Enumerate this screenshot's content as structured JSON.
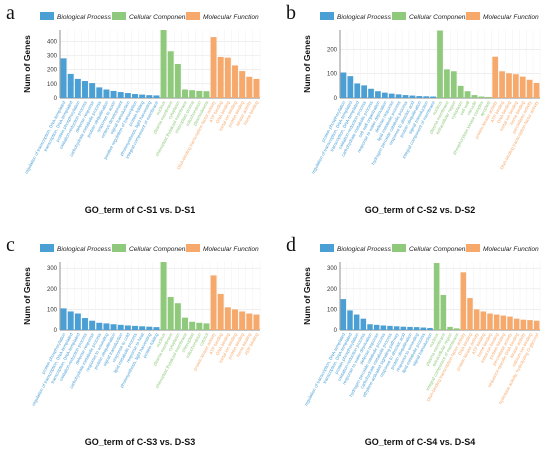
{
  "colors": {
    "bp": "#4a9fd4",
    "cc": "#8fc97c",
    "mf": "#f6a96b",
    "grid": "#e4e4e4"
  },
  "legend": {
    "items": [
      {
        "key": "bp",
        "label": "Biological Process"
      },
      {
        "key": "cc",
        "label": "Cellular Component"
      },
      {
        "key": "mf",
        "label": "Molecular Function"
      }
    ]
  },
  "chart_data": [
    {
      "type": "bar",
      "panel_letter": "a",
      "title": "GO_term of C-S1 vs. D-S1",
      "ylabel": "Num of Genes",
      "ylim": [
        0,
        480
      ],
      "yticks": [
        0,
        100,
        200,
        300,
        400
      ],
      "grid": true,
      "legend_position": "top",
      "groups": [
        {
          "key": "bp",
          "values": [
            280,
            170,
            135,
            120,
            105,
            75,
            60,
            50,
            42,
            35,
            28,
            24,
            20,
            18
          ]
        },
        {
          "key": "cc",
          "values": [
            480,
            330,
            240,
            60,
            55,
            50,
            48
          ]
        },
        {
          "key": "mf",
          "values": [
            430,
            290,
            285,
            230,
            190,
            150,
            135
          ]
        }
      ],
      "labels": {
        "bp": [
          "regulation of transcription, DNA-templated",
          "transcription, DNA-templated",
          "protein phosphorylation",
          "oxidation-reduction process",
          "defense response",
          "carbohydrate metabolic process",
          "protein ubiquitination",
          "response to auxin",
          "embryo development",
          "signal transduction",
          "positive regulation of transcription",
          "protein folding",
          "photosynthesis, light harvesting",
          "integral component of membrane"
        ],
        "cc": [
          "nucleus",
          "plasma membrane",
          "cytoplasm",
          "chloroplast thylakoid membrane",
          "chloroplast stroma",
          "mitochondrion",
          "plasmodesma"
        ],
        "mf": [
          "DNA-binding transcription factor activity",
          "ATP binding",
          "DNA binding",
          "metal ion binding",
          "protein binding",
          "kinase activity",
          "heme binding"
        ]
      }
    },
    {
      "type": "bar",
      "panel_letter": "b",
      "title": "GO_term of C-S2 vs. D-S2",
      "ylabel": "Num of Genes",
      "ylim": [
        0,
        280
      ],
      "yticks": [
        0,
        100,
        200
      ],
      "grid": true,
      "legend_position": "top",
      "groups": [
        {
          "key": "bp",
          "values": [
            105,
            90,
            60,
            52,
            38,
            28,
            22,
            18,
            15,
            12,
            10,
            8,
            7,
            6
          ]
        },
        {
          "key": "cc",
          "values": [
            278,
            118,
            110,
            50,
            28,
            12,
            6,
            4
          ]
        },
        {
          "key": "mf",
          "values": [
            170,
            110,
            102,
            98,
            88,
            75,
            62
          ]
        }
      ],
      "labels": {
        "bp": [
          "protein phosphorylation",
          "regulation of transcription, DNA-templated",
          "transcription, DNA-templated",
          "oxidation-reduction process",
          "carbohydrate metabolic process",
          "cell wall organization",
          "response to water deprivation",
          "defense response",
          "lipid metabolic process",
          "hydrogen peroxide catabolic process",
          "response to abscisic acid",
          "protein ubiquitination",
          "signal transduction",
          "integral component of membrane"
        ],
        "cc": [
          "nucleus",
          "plasma membrane",
          "extracellular region",
          "cytoplasm",
          "cell wall",
          "vacuole",
          "phosphorylase kinase complex",
          "apoplast"
        ],
        "mf": [
          "protein kinase activity",
          "ATP binding",
          "DNA binding",
          "metal ion binding",
          "heme binding",
          "peroxidase activity",
          "DNA-binding transcription factor activity"
        ]
      }
    },
    {
      "type": "bar",
      "panel_letter": "c",
      "title": "GO_term of C-S3 vs. D-S3",
      "ylabel": "Num of Genes",
      "ylim": [
        0,
        330
      ],
      "yticks": [
        0,
        100,
        200,
        300
      ],
      "grid": true,
      "legend_position": "top",
      "groups": [
        {
          "key": "bp",
          "values": [
            105,
            90,
            80,
            58,
            45,
            35,
            32,
            28,
            25,
            22,
            20,
            18,
            16,
            14
          ]
        },
        {
          "key": "cc",
          "values": [
            330,
            160,
            130,
            60,
            40,
            35,
            32
          ]
        },
        {
          "key": "mf",
          "values": [
            265,
            175,
            110,
            100,
            90,
            80,
            75
          ]
        }
      ],
      "labels": {
        "bp": [
          "protein phosphorylation",
          "regulation of transcription, DNA-templated",
          "transcription, DNA-templated",
          "oxidation-reduction process",
          "defense response",
          "carbohydrate metabolic process",
          "response to wounding",
          "protein ubiquitination",
          "signal transduction",
          "response to cold",
          "lipid metabolic process",
          "response to heat",
          "photosynthesis, light harvesting",
          "protein folding"
        ],
        "cc": [
          "nucleus",
          "plasma membrane",
          "cytoplasm",
          "chloroplast thylakoid membrane",
          "chloroplast",
          "mitochondrion",
          "cytosol"
        ],
        "mf": [
          "protein kinase activity",
          "ATP binding",
          "DNA binding",
          "metal ion binding",
          "protein binding",
          "heme binding",
          "ADP binding"
        ]
      }
    },
    {
      "type": "bar",
      "panel_letter": "d",
      "title": "GO_term of C-S4 vs. D-S4",
      "ylabel": "Num of Genes",
      "ylim": [
        0,
        330
      ],
      "yticks": [
        0,
        100,
        200,
        300
      ],
      "grid": true,
      "legend_position": "top",
      "groups": [
        {
          "key": "bp",
          "values": [
            150,
            95,
            75,
            55,
            28,
            25,
            22,
            20,
            18,
            16,
            15,
            14,
            12,
            10
          ]
        },
        {
          "key": "cc",
          "values": [
            325,
            170,
            15,
            8
          ]
        },
        {
          "key": "mf",
          "values": [
            280,
            155,
            100,
            90,
            80,
            75,
            70,
            65,
            55,
            50,
            48,
            45
          ]
        }
      ],
      "labels": {
        "bp": [
          "regulation of transcription, DNA-templated",
          "transcription, DNA-templated",
          "protein phosphorylation",
          "oxidation-reduction process",
          "response to water deprivation",
          "defense response",
          "hydrogen peroxide catabolic process",
          "carbohydrate metabolic process",
          "ethylene-activated signaling pathway",
          "response to abscisic acid",
          "protein ubiquitination",
          "response to wounding",
          "lipid metabolic process",
          "signal transduction"
        ],
        "cc": [
          "nucleus",
          "plasma membrane",
          "extracellular region",
          "integral component of membrane"
        ],
        "mf": [
          "DNA-binding transcription factor activity",
          "DNA binding",
          "protein kinase activity",
          "ATP binding",
          "heme binding",
          "metal ion binding",
          "protein binding",
          "peroxidase activity",
          "sequence-specific DNA binding",
          "kinase activity",
          "calcium ion binding",
          "hydrolase activity, hydrolyzing O-glycosyl"
        ]
      }
    }
  ]
}
